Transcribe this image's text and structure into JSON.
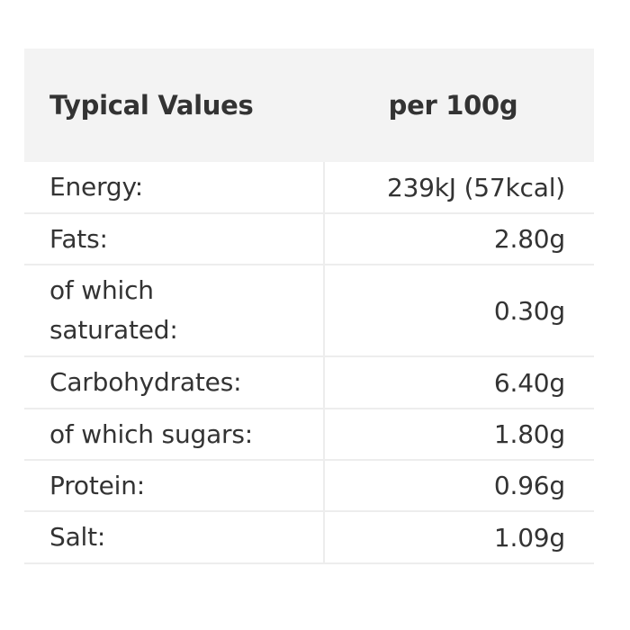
{
  "table": {
    "header": {
      "label": "Typical Values",
      "value": "per 100g"
    },
    "rows": [
      {
        "label": "Energy:",
        "value": "239kJ (57kcal)"
      },
      {
        "label": "Fats:",
        "value": "2.80g"
      },
      {
        "label": "of which saturated:",
        "value": "0.30g"
      },
      {
        "label": "Carbohydrates:",
        "value": "6.40g"
      },
      {
        "label": "of which sugars:",
        "value": "1.80g"
      },
      {
        "label": "Protein:",
        "value": "0.96g"
      },
      {
        "label": "Salt:",
        "value": "1.09g"
      }
    ]
  },
  "colors": {
    "header_bg": "#f3f3f3",
    "text": "#333333",
    "border": "#ededed"
  }
}
